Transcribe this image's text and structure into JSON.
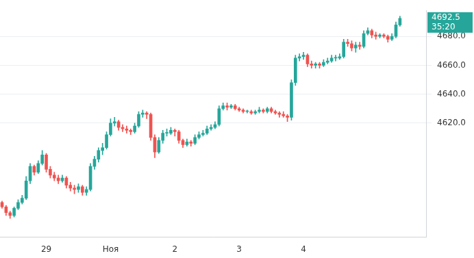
{
  "chart_data": {
    "type": "candlestick",
    "categories": [
      null,
      null,
      null,
      null,
      null,
      null,
      null,
      null,
      null,
      null,
      null,
      "29",
      null,
      null,
      null,
      null,
      null,
      null,
      null,
      null,
      null,
      null,
      null,
      null,
      null,
      null,
      null,
      "Ноя",
      null,
      null,
      null,
      null,
      null,
      null,
      null,
      null,
      null,
      null,
      null,
      null,
      null,
      null,
      null,
      "2",
      null,
      null,
      null,
      null,
      null,
      null,
      null,
      null,
      null,
      null,
      null,
      null,
      null,
      null,
      null,
      "3",
      null,
      null,
      null,
      null,
      null,
      null,
      null,
      null,
      null,
      null,
      null,
      null,
      null,
      null,
      null,
      "4",
      null,
      null,
      null,
      null,
      null,
      null,
      null,
      null,
      null,
      null,
      null,
      null,
      null,
      null,
      null,
      null,
      null,
      null,
      null,
      null,
      null,
      null,
      null,
      null,
      null,
      null,
      null,
      null,
      null,
      null
    ],
    "open": [
      4565,
      4562,
      4558,
      4556,
      4561,
      4565,
      4568,
      4580,
      4590,
      4586,
      4592,
      4598,
      4588,
      4584,
      4582,
      4580,
      4582,
      4577,
      4575,
      4574,
      4576,
      4572,
      4574,
      4590,
      4595,
      4601,
      4603,
      4612,
      4620,
      4621,
      4617,
      4616,
      4615,
      4614,
      4618,
      4626,
      4627,
      4626,
      4610,
      4600,
      4608,
      4613,
      4613,
      4615,
      4614,
      4608,
      4605,
      4607,
      4606,
      4610,
      4612,
      4613,
      4616,
      4617,
      4619,
      4630,
      4632,
      4631,
      4632,
      4630,
      4629,
      4628,
      4628,
      4627,
      4628,
      4629,
      4628,
      4630,
      4628,
      4627,
      4626,
      4625,
      4624,
      4648,
      4665,
      4666,
      4667,
      4661,
      4660,
      4661,
      4660,
      4662,
      4663,
      4665,
      4665,
      4666,
      4676,
      4675,
      4672,
      4674,
      4673,
      4682,
      4684,
      4681,
      4680,
      4681,
      4680,
      4678,
      4680,
      4688,
      null,
      null,
      null,
      null,
      null,
      null
    ],
    "high": [
      4566,
      4563,
      4559,
      4562,
      4567,
      4570,
      4583,
      4592,
      4591,
      4594,
      4601,
      4599,
      4590,
      4586,
      4584,
      4584,
      4583,
      4579,
      4577,
      4578,
      4577,
      4576,
      4592,
      4597,
      4603,
      4606,
      4614,
      4623,
      4624,
      4622,
      4619,
      4618,
      4616,
      4620,
      4628,
      4629,
      4628,
      4627,
      4612,
      4610,
      4615,
      4616,
      4617,
      4616,
      4615,
      4609,
      4609,
      4608,
      4612,
      4614,
      4615,
      4618,
      4619,
      4621,
      4632,
      4634,
      4634,
      4633,
      4633,
      4631,
      4630,
      4629,
      4629,
      4629,
      4631,
      4630,
      4631,
      4631,
      4629,
      4628,
      4628,
      4626,
      4650,
      4667,
      4668,
      4669,
      4668,
      4663,
      4662,
      4662,
      4664,
      4665,
      4667,
      4667,
      4668,
      4678,
      4678,
      4677,
      4676,
      4676,
      4684,
      4686,
      4685,
      4683,
      4682,
      4682,
      4681,
      4682,
      4690,
      4694,
      null,
      null,
      null,
      null,
      null,
      null
    ],
    "low": [
      4561,
      4556,
      4554,
      4555,
      4560,
      4564,
      4567,
      4578,
      4584,
      4585,
      4591,
      4586,
      4582,
      4580,
      4578,
      4579,
      4575,
      4573,
      4571,
      4572,
      4570,
      4570,
      4573,
      4588,
      4593,
      4598,
      4602,
      4611,
      4618,
      4615,
      4614,
      4613,
      4612,
      4613,
      4617,
      4624,
      4623,
      4608,
      4596,
      4599,
      4606,
      4611,
      4612,
      4611,
      4606,
      4603,
      4604,
      4604,
      4605,
      4609,
      4611,
      4612,
      4615,
      4616,
      4618,
      4629,
      4629,
      4630,
      4629,
      4628,
      4627,
      4627,
      4626,
      4626,
      4627,
      4627,
      4627,
      4627,
      4626,
      4624,
      4624,
      4621,
      4622,
      4646,
      4663,
      4664,
      4659,
      4658,
      4658,
      4658,
      4659,
      4661,
      4662,
      4663,
      4664,
      4665,
      4673,
      4670,
      4669,
      4671,
      4672,
      4681,
      4679,
      4678,
      4679,
      4679,
      4676,
      4677,
      4679,
      4687,
      null,
      null,
      null,
      null,
      null,
      null
    ],
    "close": [
      4562,
      4558,
      4556,
      4561,
      4565,
      4568,
      4580,
      4590,
      4586,
      4592,
      4598,
      4588,
      4584,
      4582,
      4580,
      4582,
      4577,
      4575,
      4574,
      4576,
      4572,
      4574,
      4590,
      4595,
      4601,
      4603,
      4612,
      4620,
      4621,
      4617,
      4616,
      4615,
      4614,
      4618,
      4626,
      4627,
      4626,
      4610,
      4600,
      4608,
      4613,
      4613,
      4615,
      4614,
      4608,
      4605,
      4607,
      4606,
      4610,
      4612,
      4613,
      4616,
      4617,
      4619,
      4630,
      4632,
      4631,
      4632,
      4630,
      4629,
      4628,
      4628,
      4627,
      4628,
      4629,
      4628,
      4630,
      4628,
      4627,
      4626,
      4625,
      4624,
      4648,
      4665,
      4666,
      4667,
      4661,
      4660,
      4661,
      4660,
      4662,
      4663,
      4665,
      4665,
      4666,
      4676,
      4675,
      4672,
      4674,
      4673,
      4682,
      4684,
      4681,
      4680,
      4681,
      4680,
      4678,
      4680,
      4688,
      4692.5,
      null,
      null,
      null,
      null,
      null,
      null
    ],
    "color": {
      "up": "#26a69a",
      "down": "#ef5350"
    },
    "ylim": [
      4541,
      4698
    ],
    "yticks": [
      4620,
      4640,
      4660,
      4680
    ],
    "grid": true,
    "price_tag": {
      "value": 4692.5,
      "timer": "35:20"
    }
  }
}
